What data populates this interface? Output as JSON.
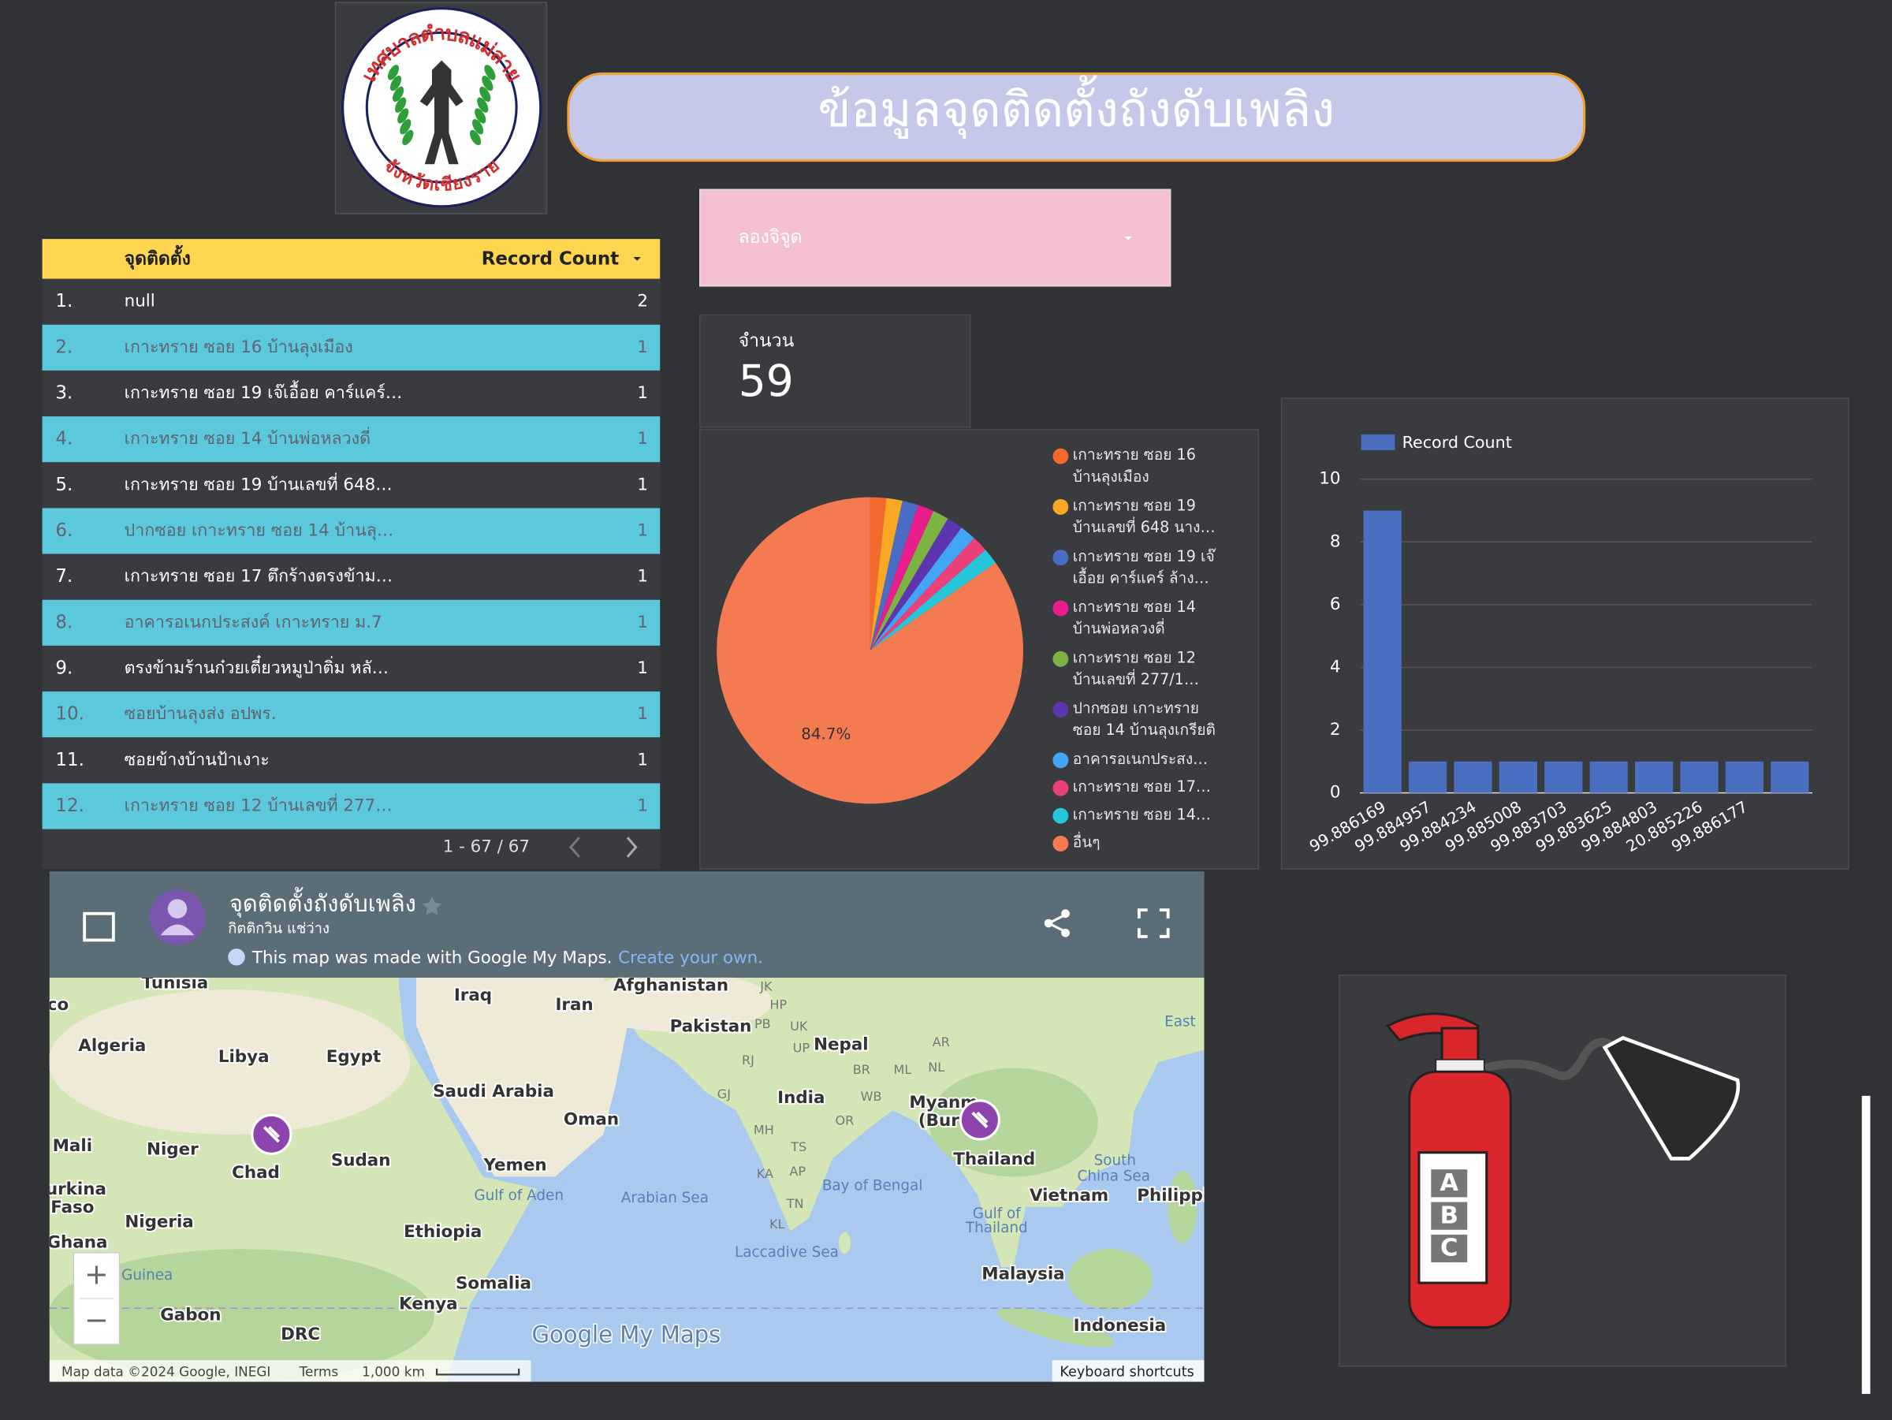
{
  "header": {
    "title": "ข้อมูลจุดติดตั้งถังดับเพลิง"
  },
  "logo": {
    "top_text": "เทศบาลตำบลแม่สาย",
    "bottom_text": "จังหวัดเชียงราย"
  },
  "table": {
    "headers": [
      "จุดติดตั้ง",
      "Record Count"
    ],
    "rows": [
      [
        "1.",
        "null",
        2
      ],
      [
        "2.",
        "เกาะทราย ซอย 16 บ้านลุงเมือง",
        1
      ],
      [
        "3.",
        "เกาะทราย ซอย 19 เจ๊เอื้อย คาร์แคร์…",
        1
      ],
      [
        "4.",
        "เกาะทราย ซอย 14 บ้านพ่อหลวงดี่",
        1
      ],
      [
        "5.",
        "เกาะทราย ซอย 19 บ้านเลขที่ 648…",
        1
      ],
      [
        "6.",
        "ปากซอย เกาะทราย ซอย 14 บ้านลุ…",
        1
      ],
      [
        "7.",
        "เกาะทราย ซอย 17 ตึกร้างตรงข้าม…",
        1
      ],
      [
        "8.",
        "อาคารอเนกประสงค์ เกาะทราย ม.7",
        1
      ],
      [
        "9.",
        "ตรงข้ามร้านก๋วยเตี๋ยวหมูป่าติ่ม หลั…",
        1
      ],
      [
        "10.",
        "ซอยบ้านลุงส่ง อปพร.",
        1
      ],
      [
        "11.",
        "ซอยข้างบ้านป้าเงาะ",
        1
      ],
      [
        "12.",
        "เกาะทราย ซอย 12 บ้านเลขที่ 277…",
        1
      ]
    ],
    "pagination": "1 - 67 / 67"
  },
  "dropdown": {
    "label": "ลองจิจูด"
  },
  "scorecard": {
    "label": "จำนวน",
    "value": 59
  },
  "chart_data": [
    {
      "type": "pie",
      "categories": [
        "เกาะทราย ซอย 16 บ้านลุงเมือง",
        "เกาะทราย ซอย 19 บ้านเลขที่ 648 นาง…",
        "เกาะทราย ซอย 19 เจ๊เอื้อย คาร์แคร์ ล้าง…",
        "เกาะทราย ซอย 14 บ้านพ่อหลวงดี่",
        "เกาะทราย ซอย 12 บ้านเลขที่ 277/1…",
        "ปากซอย เกาะทราย ซอย 14 บ้านลุงเกรียติ",
        "อาคารอเนกประสง…",
        "เกาะทราย ซอย 17…",
        "เกาะทราย ซอย 14…",
        "อื่นๆ"
      ],
      "values": [
        1.7,
        1.7,
        1.7,
        1.7,
        1.7,
        1.7,
        1.7,
        1.7,
        1.7,
        84.7
      ],
      "value_labels": [
        null,
        null,
        null,
        null,
        null,
        null,
        null,
        null,
        null,
        "84.7%"
      ],
      "colors": [
        "#f4692e",
        "#f9a825",
        "#4a6cc4",
        "#e91e8c",
        "#7cb342",
        "#5e35b1",
        "#42a5f5",
        "#ec407a",
        "#26c6da",
        "#f47a52"
      ],
      "legend": "right"
    },
    {
      "type": "bar",
      "categories": [
        null,
        "99.886169",
        "99.884957",
        "99.884234",
        "99.885008",
        "99.883703",
        "99.883625",
        "99.884803",
        "20.885226",
        "99.886177"
      ],
      "series": [
        {
          "name": "Record Count",
          "color": "#4a6fc0",
          "values": [
            9,
            1,
            1,
            1,
            1,
            1,
            1,
            1,
            1,
            1
          ]
        }
      ],
      "ylim": [
        0,
        10
      ],
      "yticks": [
        0,
        2,
        4,
        6,
        8,
        10
      ],
      "grid": true,
      "legend": "top-left"
    }
  ],
  "map": {
    "title": "จุดติดตั้งถังดับเพลิง",
    "author": "กิตติกวิน แช่ว่าง",
    "notice": "This map was made with Google My Maps.",
    "link": "Create your own.",
    "land_labels": [
      "Tunisia",
      "co",
      "Algeria",
      "Libya",
      "Egypt",
      "Iraq",
      "Iran",
      "Afghanistan",
      "Pakistan",
      "Nepal",
      "India",
      "Saudi Arabia",
      "Oman",
      "Yemen",
      "Mali",
      "Niger",
      "Chad",
      "Sudan",
      "urkina",
      "Faso",
      "Nigeria",
      "Ethiopia",
      "Ghana",
      "Somalia",
      "Kenya",
      "Gabon",
      "DRC",
      "Myanm",
      "(Bur",
      "Thailand",
      "Vietnam",
      "Philippi",
      "Malaysia",
      "Indonesia"
    ],
    "small_labels": [
      "JK",
      "HP",
      "PB",
      "UK",
      "RJ",
      "UP",
      "BR",
      "ML",
      "NL",
      "GJ",
      "WB",
      "MH",
      "OR",
      "TS",
      "KA",
      "AP",
      "TN",
      "KL",
      "AR"
    ],
    "water_labels": [
      "Gulf of Aden",
      "Arabian Sea",
      "Bay of Bengal",
      "South",
      "China Sea",
      "Gulf of",
      "Thailand",
      "Laccadive Sea",
      "Guinea",
      "East"
    ],
    "zoom": [
      "+",
      "−"
    ],
    "brand": "Google My Maps",
    "attribution": "Map data ©2024 Google, INEGI",
    "terms": "Terms",
    "scale": "1,000 km",
    "shortcuts": "Keyboard shortcuts"
  },
  "extinguisher": {
    "classes": [
      "A",
      "B",
      "C"
    ]
  }
}
